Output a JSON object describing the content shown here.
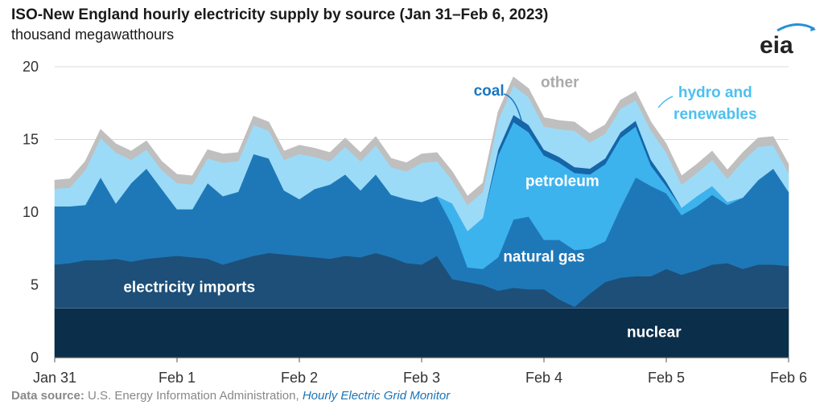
{
  "header": {
    "title": "ISO-New England hourly electricity supply by source (Jan 31–Feb 6, 2023)",
    "subtitle": "thousand megawatthours"
  },
  "logo": {
    "text": "eia",
    "icon": "eia-logo"
  },
  "footer": {
    "source_label": "Data source:",
    "source_text": "U.S. Energy Information Administration,",
    "source_link": "Hourly Electric Grid Monitor"
  },
  "chart_data": {
    "type": "area",
    "stacked": true,
    "ylim": [
      0,
      20
    ],
    "yticks": [
      0,
      5,
      10,
      15,
      20
    ],
    "xlim": [
      0,
      6
    ],
    "xticks": [
      {
        "x": 0,
        "label": "Jan 31"
      },
      {
        "x": 1,
        "label": "Feb 1"
      },
      {
        "x": 2,
        "label": "Feb 2"
      },
      {
        "x": 3,
        "label": "Feb 3"
      },
      {
        "x": 4,
        "label": "Feb 4"
      },
      {
        "x": 5,
        "label": "Feb 5"
      },
      {
        "x": 6,
        "label": "Feb 6"
      }
    ],
    "grid": true,
    "x": [
      0,
      0.125,
      0.25,
      0.375,
      0.5,
      0.625,
      0.75,
      0.875,
      1,
      1.125,
      1.25,
      1.375,
      1.5,
      1.625,
      1.75,
      1.875,
      2,
      2.125,
      2.25,
      2.375,
      2.5,
      2.625,
      2.75,
      2.875,
      3,
      3.125,
      3.25,
      3.375,
      3.5,
      3.625,
      3.75,
      3.875,
      4,
      4.125,
      4.25,
      4.375,
      4.5,
      4.625,
      4.75,
      4.875,
      5,
      5.125,
      5.25,
      5.375,
      5.5,
      5.625,
      5.75,
      5.875,
      6
    ],
    "series": [
      {
        "name": "nuclear",
        "color": "#0b2e4a",
        "values": [
          3.4,
          3.4,
          3.4,
          3.4,
          3.4,
          3.4,
          3.4,
          3.4,
          3.4,
          3.4,
          3.4,
          3.4,
          3.4,
          3.4,
          3.4,
          3.4,
          3.4,
          3.4,
          3.4,
          3.4,
          3.4,
          3.4,
          3.4,
          3.4,
          3.4,
          3.4,
          3.4,
          3.4,
          3.4,
          3.4,
          3.4,
          3.4,
          3.4,
          3.4,
          3.4,
          3.4,
          3.4,
          3.4,
          3.4,
          3.4,
          3.4,
          3.4,
          3.4,
          3.4,
          3.4,
          3.4,
          3.4,
          3.4,
          3.4
        ]
      },
      {
        "name": "electricity imports",
        "color": "#1d4f78",
        "values": [
          3.0,
          3.1,
          3.3,
          3.3,
          3.4,
          3.2,
          3.4,
          3.5,
          3.6,
          3.5,
          3.4,
          3.0,
          3.3,
          3.6,
          3.8,
          3.7,
          3.6,
          3.5,
          3.4,
          3.6,
          3.5,
          3.8,
          3.5,
          3.1,
          3.0,
          3.6,
          2.0,
          1.8,
          1.6,
          1.2,
          1.4,
          1.3,
          1.3,
          0.6,
          0.1,
          1.0,
          1.8,
          2.1,
          2.2,
          2.2,
          2.7,
          2.3,
          2.6,
          3.0,
          3.1,
          2.7,
          3.0,
          3.0,
          2.9
        ]
      },
      {
        "name": "natural gas",
        "color": "#1e78b8",
        "values": [
          4.0,
          3.9,
          3.8,
          5.7,
          3.8,
          5.4,
          6.2,
          4.7,
          3.2,
          3.3,
          5.2,
          4.7,
          4.7,
          7.0,
          6.5,
          4.4,
          3.9,
          4.7,
          5.1,
          5.6,
          4.6,
          5.4,
          4.3,
          4.4,
          4.3,
          4.1,
          3.7,
          1.0,
          1.1,
          2.3,
          4.7,
          5.0,
          3.4,
          4.1,
          3.9,
          3.1,
          2.8,
          4.8,
          6.8,
          6.2,
          5.2,
          4.1,
          4.4,
          4.8,
          4.0,
          4.9,
          5.8,
          6.6,
          5.1
        ]
      },
      {
        "name": "petroleum",
        "color": "#3db3ee",
        "values": [
          0,
          0,
          0,
          0,
          0,
          0,
          0,
          0,
          0,
          0,
          0,
          0,
          0,
          0,
          0,
          0,
          0,
          0,
          0,
          0,
          0,
          0,
          0,
          0,
          0,
          0,
          1.5,
          2.5,
          3.5,
          7.0,
          6.7,
          5.8,
          5.8,
          5.3,
          5.3,
          5.1,
          5.3,
          4.8,
          3.5,
          1.4,
          0.5,
          0.5,
          0.7,
          0.6,
          0.2,
          0,
          0,
          0,
          0
        ]
      },
      {
        "name": "coal",
        "color": "#1565a8",
        "values": [
          0,
          0,
          0,
          0,
          0,
          0,
          0,
          0,
          0,
          0,
          0,
          0,
          0,
          0,
          0,
          0,
          0,
          0,
          0,
          0,
          0,
          0,
          0,
          0,
          0,
          0,
          0,
          0,
          0,
          0.4,
          0.5,
          0.5,
          0.4,
          0.4,
          0.4,
          0.4,
          0.4,
          0.4,
          0.4,
          0.4,
          0.3,
          0,
          0,
          0,
          0,
          0,
          0,
          0,
          0
        ]
      },
      {
        "name": "hydro and renewables",
        "color": "#9cdbf7",
        "values": [
          1.2,
          1.3,
          2.4,
          2.7,
          3.5,
          1.6,
          1.3,
          1.3,
          1.8,
          1.7,
          1.7,
          2.3,
          2.1,
          2.0,
          1.9,
          2.1,
          3.1,
          2.2,
          1.6,
          1.9,
          2.0,
          2.0,
          1.9,
          1.9,
          2.7,
          2.4,
          1.6,
          1.8,
          1.8,
          2.0,
          2.0,
          1.9,
          1.6,
          1.9,
          2.5,
          1.8,
          1.7,
          1.6,
          1.4,
          2.0,
          2.0,
          1.6,
          1.6,
          1.8,
          1.6,
          2.5,
          2.3,
          1.6,
          1.3
        ]
      },
      {
        "name": "other",
        "color": "#bfbfbf",
        "values": [
          0.6,
          0.6,
          0.6,
          0.6,
          0.6,
          0.6,
          0.6,
          0.6,
          0.6,
          0.6,
          0.6,
          0.6,
          0.6,
          0.6,
          0.6,
          0.6,
          0.6,
          0.6,
          0.6,
          0.6,
          0.6,
          0.6,
          0.6,
          0.6,
          0.6,
          0.6,
          0.6,
          0.6,
          0.6,
          0.6,
          0.6,
          0.6,
          0.6,
          0.6,
          0.6,
          0.6,
          0.6,
          0.6,
          0.6,
          0.6,
          0.6,
          0.6,
          0.6,
          0.6,
          0.6,
          0.6,
          0.6,
          0.6,
          0.6
        ]
      }
    ],
    "labels": [
      {
        "text": "nuclear",
        "series": "nuclear",
        "x": 4.9,
        "y": 1.4,
        "color": "#ffffff"
      },
      {
        "text": "electricity imports",
        "series": "electricity imports",
        "x": 1.1,
        "y": 4.5,
        "color": "#ffffff"
      },
      {
        "text": "natural gas",
        "series": "natural gas",
        "x": 4.0,
        "y": 6.6,
        "color": "#ffffff"
      },
      {
        "text": "petroleum",
        "series": "petroleum",
        "x": 4.15,
        "y": 11.8,
        "color": "#ffffff"
      },
      {
        "text": "coal",
        "series": "coal",
        "x": 3.55,
        "y": 18.0,
        "color": "#1b77c0"
      },
      {
        "text": "other",
        "series": "other",
        "x": 4.13,
        "y": 18.6,
        "color": "#aaaaaa"
      },
      {
        "text": "hydro and",
        "series": "hydro and renewables",
        "x": 5.4,
        "y": 17.9,
        "color": "#4cc0f0"
      },
      {
        "text": "renewables",
        "series": "hydro and renewables",
        "x": 5.4,
        "y": 16.4,
        "color": "#4cc0f0"
      }
    ]
  }
}
